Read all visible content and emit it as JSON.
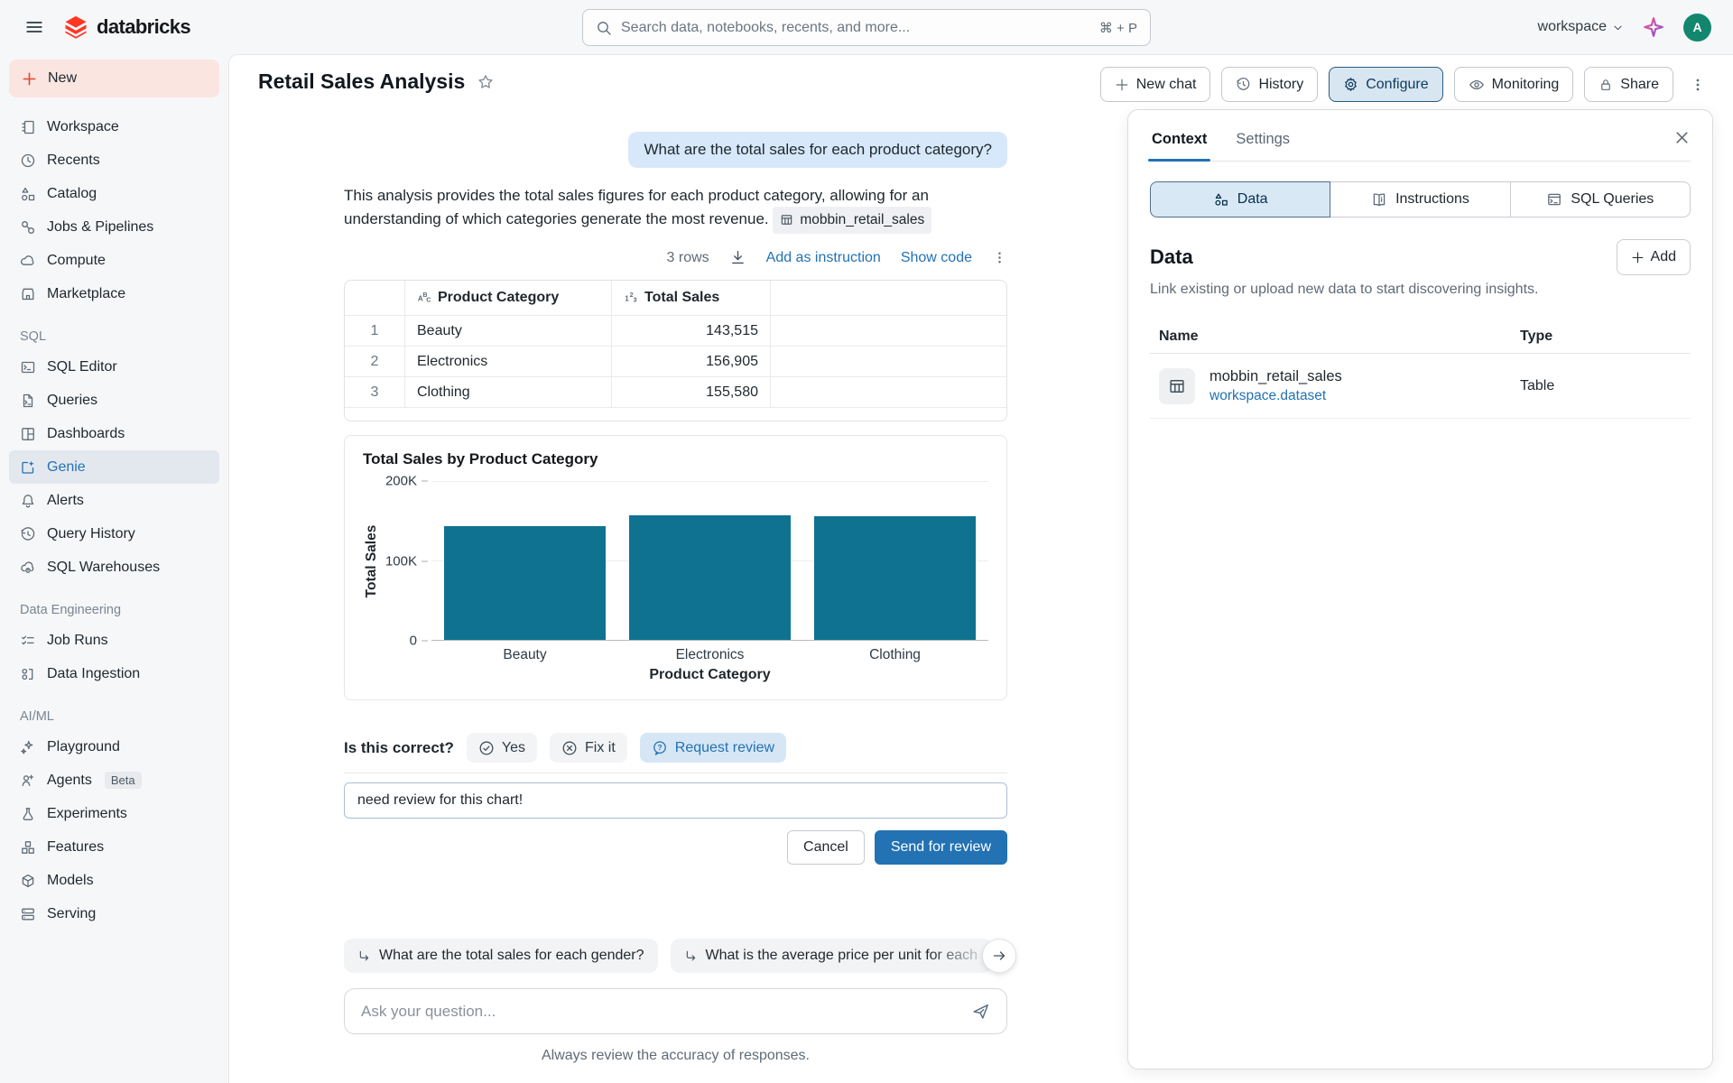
{
  "topbar": {
    "brand": "databricks",
    "search_placeholder": "Search data, notebooks, recents, and more...",
    "search_shortcut": "⌘ + P",
    "workspace_label": "workspace",
    "avatar_initial": "A"
  },
  "sidebar": {
    "new_label": "New",
    "section_sql": "SQL",
    "section_data_engineering": "Data Engineering",
    "section_aiml": "AI/ML",
    "beta_badge": "Beta",
    "items": {
      "workspace": "Workspace",
      "recents": "Recents",
      "catalog": "Catalog",
      "jobs": "Jobs & Pipelines",
      "compute": "Compute",
      "marketplace": "Marketplace",
      "sql_editor": "SQL Editor",
      "queries": "Queries",
      "dashboards": "Dashboards",
      "genie": "Genie",
      "alerts": "Alerts",
      "query_history": "Query History",
      "sql_warehouses": "SQL Warehouses",
      "job_runs": "Job Runs",
      "data_ingestion": "Data Ingestion",
      "playground": "Playground",
      "agents": "Agents",
      "experiments": "Experiments",
      "features": "Features",
      "models": "Models",
      "serving": "Serving"
    }
  },
  "header": {
    "title": "Retail Sales Analysis",
    "new_chat": "New chat",
    "history": "History",
    "configure": "Configure",
    "monitoring": "Monitoring",
    "share": "Share"
  },
  "chat": {
    "question": "What are the total sales for each product category?",
    "answer_text": "This analysis provides the total sales figures for each product category, allowing for an understanding of which categories generate the most revenue.",
    "dataset_chip": "mobbin_retail_sales",
    "rows_count": "3 rows",
    "add_as_instruction": "Add as instruction",
    "show_code": "Show code",
    "table": {
      "col_category": "Product Category",
      "col_total": "Total Sales",
      "rows": [
        {
          "n": "1",
          "category": "Beauty",
          "total": "143,515"
        },
        {
          "n": "2",
          "category": "Electronics",
          "total": "156,905"
        },
        {
          "n": "3",
          "category": "Clothing",
          "total": "155,580"
        }
      ]
    },
    "correct_label": "Is this correct?",
    "yes": "Yes",
    "fix_it": "Fix it",
    "request_review": "Request review",
    "review_input_value": "need review for this chart!",
    "cancel": "Cancel",
    "send_for_review": "Send for review",
    "suggestion_1": "What are the total sales for each gender?",
    "suggestion_2": "What is the average price per unit for each",
    "ask_placeholder": "Ask your question...",
    "disclaimer": "Always review the accuracy of responses."
  },
  "panel": {
    "tab_context": "Context",
    "tab_settings": "Settings",
    "seg_data": "Data",
    "seg_instructions": "Instructions",
    "seg_sql": "SQL Queries",
    "data_title": "Data",
    "add_label": "Add",
    "subtitle": "Link existing or upload new data to start discovering insights.",
    "col_name": "Name",
    "col_type": "Type",
    "row_name": "mobbin_retail_sales",
    "row_path": "workspace.dataset",
    "row_type": "Table"
  },
  "chart_data": {
    "type": "bar",
    "title": "Total Sales by Product Category",
    "categories": [
      "Beauty",
      "Electronics",
      "Clothing"
    ],
    "values": [
      143515,
      156905,
      155580
    ],
    "xlabel": "Product Category",
    "ylabel": "Total Sales",
    "ylim": [
      0,
      200000
    ],
    "yticks": [
      "0",
      "100K",
      "200K"
    ],
    "bar_color": "#0f7291",
    "grid": true,
    "legend": false
  },
  "colors": {
    "accent_blue": "#2272b4",
    "bar_teal": "#0f7291",
    "brand_red": "#ff3621",
    "avatar_green": "#12876e",
    "user_bubble": "#d6e8fa"
  }
}
